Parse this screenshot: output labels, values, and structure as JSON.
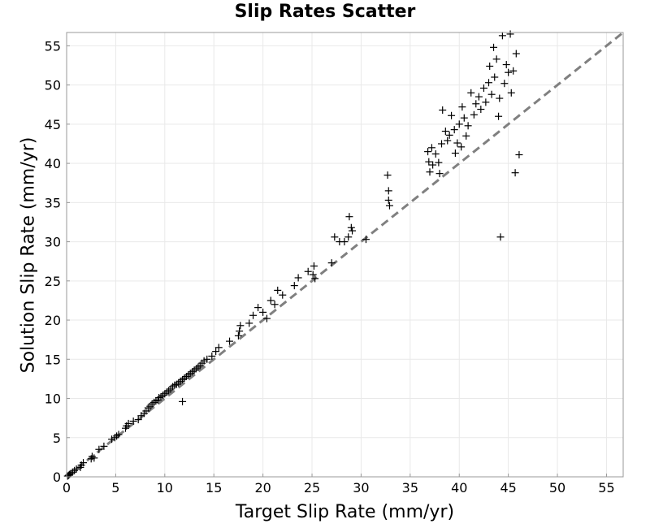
{
  "chart_data": {
    "type": "scatter",
    "title": "Slip Rates Scatter",
    "xlabel": "Target Slip Rate (mm/yr)",
    "ylabel": "Solution Slip Rate (mm/yr)",
    "xlim": [
      0,
      56.7
    ],
    "ylim": [
      0,
      56.7
    ],
    "x_ticks": [
      "0",
      "5",
      "10",
      "15",
      "20",
      "25",
      "30",
      "35",
      "40",
      "45",
      "50",
      "55"
    ],
    "y_ticks": [
      "0",
      "5",
      "10",
      "15",
      "20",
      "25",
      "30",
      "35",
      "40",
      "45",
      "50",
      "55"
    ],
    "grid": true,
    "marker": "+",
    "reference_line": {
      "style": "dashed",
      "color": "#808080",
      "from": [
        0,
        0
      ],
      "to": [
        56.7,
        56.7
      ]
    },
    "series": [
      {
        "points": [
          [
            0.1,
            0.1
          ],
          [
            0.2,
            0.2
          ],
          [
            0.3,
            0.3
          ],
          [
            0.4,
            0.4
          ],
          [
            0.6,
            0.6
          ],
          [
            0.8,
            0.8
          ],
          [
            1.0,
            1.0
          ],
          [
            1.4,
            1.2
          ],
          [
            1.5,
            1.5
          ],
          [
            1.7,
            1.8
          ],
          [
            2.5,
            2.3
          ],
          [
            2.6,
            2.6
          ],
          [
            2.8,
            2.4
          ],
          [
            3.3,
            3.5
          ],
          [
            3.8,
            3.9
          ],
          [
            4.6,
            4.8
          ],
          [
            4.9,
            5.0
          ],
          [
            5.1,
            5.2
          ],
          [
            5.3,
            5.4
          ],
          [
            6.0,
            6.2
          ],
          [
            6.1,
            6.5
          ],
          [
            6.3,
            6.8
          ],
          [
            6.8,
            7.1
          ],
          [
            7.3,
            7.3
          ],
          [
            7.6,
            7.8
          ],
          [
            7.9,
            8.1
          ],
          [
            8.1,
            8.4
          ],
          [
            8.3,
            8.8
          ],
          [
            8.5,
            9.0
          ],
          [
            8.7,
            9.3
          ],
          [
            8.9,
            9.5
          ],
          [
            9.1,
            9.7
          ],
          [
            9.3,
            9.8
          ],
          [
            9.4,
            10.1
          ],
          [
            9.6,
            10.2
          ],
          [
            9.8,
            10.4
          ],
          [
            10.0,
            10.6
          ],
          [
            10.2,
            10.8
          ],
          [
            10.4,
            11.0
          ],
          [
            10.6,
            11.2
          ],
          [
            10.8,
            11.5
          ],
          [
            11.0,
            11.7
          ],
          [
            11.2,
            11.8
          ],
          [
            11.4,
            12.0
          ],
          [
            11.6,
            12.2
          ],
          [
            11.8,
            12.4
          ],
          [
            12.0,
            12.6
          ],
          [
            12.2,
            12.8
          ],
          [
            12.4,
            13.0
          ],
          [
            12.6,
            13.2
          ],
          [
            12.8,
            13.4
          ],
          [
            13.0,
            13.6
          ],
          [
            13.2,
            13.8
          ],
          [
            13.4,
            14.0
          ],
          [
            13.6,
            14.2
          ],
          [
            13.8,
            14.5
          ],
          [
            14.0,
            14.8
          ],
          [
            14.3,
            15.0
          ],
          [
            14.8,
            15.4
          ],
          [
            15.2,
            16.0
          ],
          [
            15.5,
            16.5
          ],
          [
            16.6,
            17.3
          ],
          [
            17.5,
            18.0
          ],
          [
            17.6,
            18.6
          ],
          [
            17.7,
            19.3
          ],
          [
            18.6,
            19.6
          ],
          [
            19.0,
            20.6
          ],
          [
            19.5,
            21.6
          ],
          [
            20.0,
            21.0
          ],
          [
            20.4,
            20.2
          ],
          [
            20.8,
            22.5
          ],
          [
            21.2,
            22.0
          ],
          [
            21.5,
            23.8
          ],
          [
            22.0,
            23.2
          ],
          [
            23.2,
            24.4
          ],
          [
            23.6,
            25.4
          ],
          [
            24.6,
            26.2
          ],
          [
            25.1,
            25.8
          ],
          [
            25.2,
            26.9
          ],
          [
            25.3,
            25.3
          ],
          [
            27.0,
            27.3
          ],
          [
            27.3,
            30.6
          ],
          [
            27.8,
            30.0
          ],
          [
            28.3,
            30.0
          ],
          [
            28.7,
            30.6
          ],
          [
            28.8,
            33.2
          ],
          [
            29.0,
            31.8
          ],
          [
            29.1,
            31.4
          ],
          [
            30.5,
            30.3
          ],
          [
            32.7,
            38.5
          ],
          [
            32.8,
            36.5
          ],
          [
            32.8,
            35.3
          ],
          [
            32.9,
            34.6
          ],
          [
            36.8,
            41.5
          ],
          [
            36.9,
            40.2
          ],
          [
            37.0,
            38.9
          ],
          [
            37.2,
            42.0
          ],
          [
            37.3,
            39.8
          ],
          [
            37.6,
            41.2
          ],
          [
            37.9,
            40.1
          ],
          [
            38.0,
            38.7
          ],
          [
            38.2,
            42.5
          ],
          [
            38.3,
            46.8
          ],
          [
            38.6,
            44.1
          ],
          [
            38.8,
            42.9
          ],
          [
            39.0,
            43.6
          ],
          [
            39.2,
            46.1
          ],
          [
            39.5,
            44.3
          ],
          [
            39.6,
            41.3
          ],
          [
            39.8,
            42.6
          ],
          [
            40.0,
            45.0
          ],
          [
            40.2,
            42.1
          ],
          [
            40.3,
            47.2
          ],
          [
            40.5,
            45.8
          ],
          [
            40.7,
            43.5
          ],
          [
            40.9,
            44.8
          ],
          [
            41.2,
            49.0
          ],
          [
            41.5,
            46.2
          ],
          [
            41.7,
            47.6
          ],
          [
            42.0,
            48.5
          ],
          [
            42.2,
            46.9
          ],
          [
            42.5,
            49.6
          ],
          [
            42.7,
            47.8
          ],
          [
            43.0,
            50.3
          ],
          [
            43.1,
            52.4
          ],
          [
            43.3,
            48.8
          ],
          [
            43.5,
            54.8
          ],
          [
            43.6,
            51.0
          ],
          [
            43.8,
            53.3
          ],
          [
            44.0,
            46.0
          ],
          [
            44.1,
            48.3
          ],
          [
            44.2,
            30.6
          ],
          [
            44.4,
            56.3
          ],
          [
            44.6,
            50.2
          ],
          [
            44.8,
            52.6
          ],
          [
            45.0,
            51.6
          ],
          [
            45.2,
            56.5
          ],
          [
            45.3,
            49.0
          ],
          [
            45.5,
            51.8
          ],
          [
            45.7,
            38.8
          ],
          [
            45.8,
            54.0
          ],
          [
            46.1,
            41.1
          ],
          [
            11.8,
            9.6
          ]
        ]
      }
    ]
  }
}
